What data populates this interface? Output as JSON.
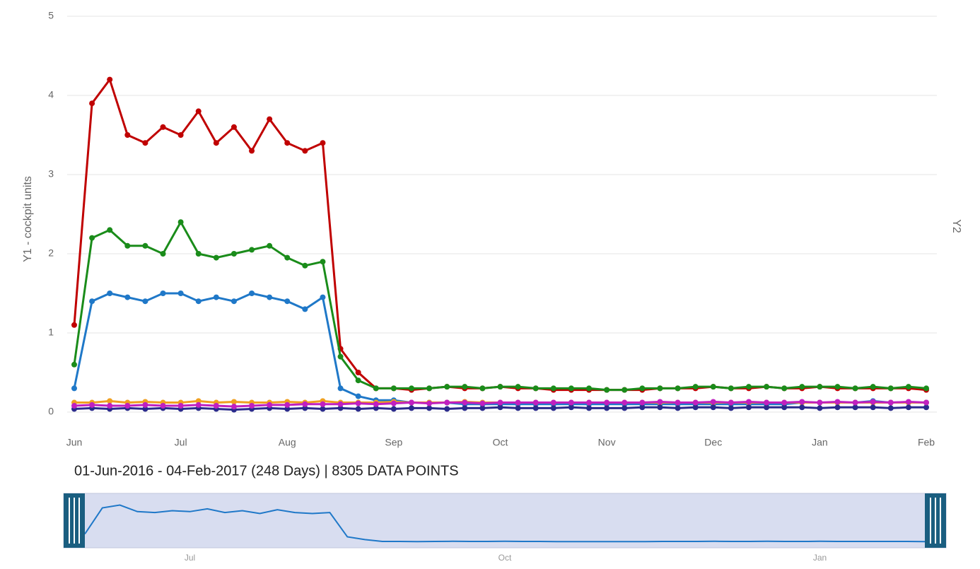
{
  "chart_data": {
    "type": "line",
    "y_label": "Y1 - cockpit units",
    "y2_label": "Y2",
    "range_text": "01-Jun-2016 - 04-Feb-2017 (248 Days) | 8305 DATA POINTS",
    "categories": [
      "Jun",
      null,
      null,
      null,
      null,
      null,
      "Jul",
      null,
      null,
      null,
      null,
      null,
      "Aug",
      null,
      null,
      null,
      null,
      null,
      "Sep",
      null,
      null,
      null,
      null,
      null,
      "Oct",
      null,
      null,
      null,
      null,
      null,
      "Nov",
      null,
      null,
      null,
      null,
      null,
      "Dec",
      null,
      null,
      null,
      null,
      null,
      "Jan",
      null,
      null,
      null,
      null,
      null,
      "Feb"
    ],
    "ylim": [
      0,
      5
    ],
    "yticks": [
      0,
      1,
      2,
      3,
      4,
      5
    ],
    "grid": true,
    "navigator_color": "#1f78c8",
    "series": [
      {
        "name": "red",
        "color": "#c00000",
        "values": [
          1.1,
          3.9,
          4.2,
          3.5,
          3.4,
          3.6,
          3.5,
          3.8,
          3.4,
          3.6,
          3.3,
          3.7,
          3.4,
          3.3,
          3.4,
          0.8,
          0.5,
          0.3,
          0.3,
          0.28,
          0.3,
          0.32,
          0.3,
          0.3,
          0.32,
          0.3,
          0.3,
          0.28,
          0.28,
          0.28,
          0.28,
          0.28,
          0.28,
          0.3,
          0.3,
          0.3,
          0.32,
          0.3,
          0.3,
          0.32,
          0.3,
          0.3,
          0.32,
          0.3,
          0.3,
          0.3,
          0.3,
          0.3,
          0.28
        ]
      },
      {
        "name": "green",
        "color": "#1a8c1a",
        "values": [
          0.6,
          2.2,
          2.3,
          2.1,
          2.1,
          2.0,
          2.4,
          2.0,
          1.95,
          2.0,
          2.05,
          2.1,
          1.95,
          1.85,
          1.9,
          0.7,
          0.4,
          0.3,
          0.3,
          0.3,
          0.3,
          0.32,
          0.32,
          0.3,
          0.32,
          0.32,
          0.3,
          0.3,
          0.3,
          0.3,
          0.28,
          0.28,
          0.3,
          0.3,
          0.3,
          0.32,
          0.32,
          0.3,
          0.32,
          0.32,
          0.3,
          0.32,
          0.32,
          0.32,
          0.3,
          0.32,
          0.3,
          0.32,
          0.3
        ]
      },
      {
        "name": "blue",
        "color": "#1f78c8",
        "values": [
          0.3,
          1.4,
          1.5,
          1.45,
          1.4,
          1.5,
          1.5,
          1.4,
          1.45,
          1.4,
          1.5,
          1.45,
          1.4,
          1.3,
          1.45,
          0.3,
          0.2,
          0.15,
          0.15,
          0.12,
          0.12,
          0.12,
          0.1,
          0.1,
          0.1,
          0.1,
          0.1,
          0.1,
          0.1,
          0.1,
          0.1,
          0.1,
          0.1,
          0.1,
          0.1,
          0.1,
          0.1,
          0.1,
          0.1,
          0.1,
          0.1,
          0.12,
          0.12,
          0.12,
          0.12,
          0.14,
          0.12,
          0.12,
          0.12
        ]
      },
      {
        "name": "orange",
        "color": "#f0a020",
        "values": [
          0.12,
          0.12,
          0.14,
          0.12,
          0.13,
          0.12,
          0.12,
          0.14,
          0.12,
          0.13,
          0.12,
          0.12,
          0.13,
          0.12,
          0.14,
          0.12,
          0.12,
          0.12,
          0.13,
          0.12,
          0.12,
          0.12,
          0.13,
          0.12,
          0.12,
          0.12,
          0.12,
          0.12,
          0.12,
          0.12,
          0.12,
          0.12,
          0.12,
          0.12,
          0.12,
          0.12,
          0.12,
          0.12,
          0.12,
          0.12,
          0.12,
          0.12,
          0.12,
          0.12,
          0.12,
          0.12,
          0.12,
          0.12,
          0.12
        ]
      },
      {
        "name": "navy",
        "color": "#2a2a8c",
        "values": [
          0.04,
          0.05,
          0.04,
          0.05,
          0.04,
          0.05,
          0.04,
          0.05,
          0.04,
          0.03,
          0.04,
          0.05,
          0.04,
          0.05,
          0.04,
          0.05,
          0.04,
          0.05,
          0.04,
          0.05,
          0.05,
          0.04,
          0.05,
          0.05,
          0.06,
          0.05,
          0.05,
          0.05,
          0.06,
          0.05,
          0.05,
          0.05,
          0.06,
          0.06,
          0.05,
          0.06,
          0.06,
          0.05,
          0.06,
          0.06,
          0.06,
          0.06,
          0.05,
          0.06,
          0.06,
          0.06,
          0.05,
          0.06,
          0.06
        ]
      },
      {
        "name": "magenta",
        "color": "#c020c0",
        "values": [
          0.08,
          0.09,
          0.08,
          0.08,
          0.09,
          0.08,
          0.08,
          0.09,
          0.08,
          0.07,
          0.08,
          0.09,
          0.09,
          0.1,
          0.1,
          0.1,
          0.11,
          0.1,
          0.11,
          0.12,
          0.11,
          0.12,
          0.12,
          0.11,
          0.12,
          0.12,
          0.12,
          0.12,
          0.12,
          0.12,
          0.12,
          0.12,
          0.12,
          0.13,
          0.12,
          0.12,
          0.13,
          0.12,
          0.13,
          0.12,
          0.12,
          0.13,
          0.12,
          0.13,
          0.12,
          0.13,
          0.12,
          0.13,
          0.12
        ]
      }
    ]
  }
}
